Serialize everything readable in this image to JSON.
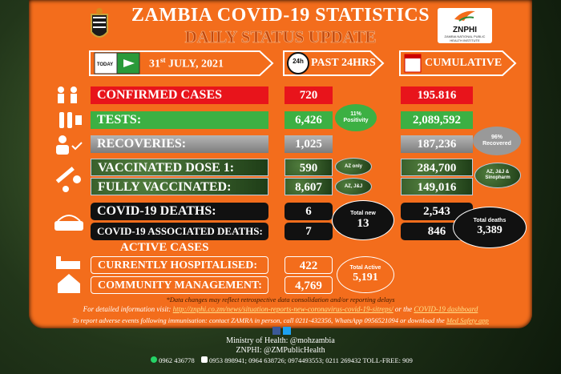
{
  "header": {
    "title": "ZAMBIA COVID-19 STATISTICS",
    "subtitle": "DAILY STATUS UPDATE",
    "logo": "ZNPHI",
    "logo_caption": "ZAMBIA NATIONAL PUBLIC HEALTH INSTITUTE"
  },
  "columns": {
    "today_icon": "TODAY",
    "date_day": "31",
    "date_suffix": "st",
    "date_rest": " JULY, 2021",
    "clock_icon": "24h",
    "past": "PAST 24HRS",
    "cumulative": "CUMULATIVE"
  },
  "rows": [
    {
      "label": "CONFIRMED CASES",
      "past_24hrs": "720",
      "cumulative": "195.816"
    },
    {
      "label": "TESTS:",
      "past_24hrs": "6,426",
      "cumulative": "2,089,592"
    },
    {
      "label": "RECOVERIES:",
      "past_24hrs": "1,025",
      "cumulative": "187,236"
    },
    {
      "label": "VACCINATED DOSE 1:",
      "past_24hrs": "590",
      "cumulative": "284,700"
    },
    {
      "label": "FULLY VACCINATED:",
      "past_24hrs": "8,607",
      "cumulative": "149,016"
    },
    {
      "label": "COVID-19 DEATHS:",
      "past_24hrs": "6",
      "cumulative": "2,543"
    },
    {
      "label": "COVID-19 ASSOCIATED DEATHS:",
      "past_24hrs": "7",
      "cumulative": "846"
    }
  ],
  "badges": {
    "positivity": {
      "value": "11%",
      "label": "Positivity"
    },
    "recovered": {
      "value": "96%",
      "label": "Recovered"
    },
    "dose1_vaccine": "AZ only",
    "full_vaccine": "AZ, J&J",
    "cumulative_vaccine": "AZ, J&J & Sinopharm",
    "total_new": {
      "label": "Total new",
      "value": "13"
    },
    "total_deaths": {
      "label": "Total deaths",
      "value": "3,389"
    }
  },
  "active": {
    "heading": "ACTIVE CASES",
    "rows": [
      {
        "label": "CURRENTLY HOSPITALISED:",
        "value": "422"
      },
      {
        "label": "COMMUNITY MANAGEMENT:",
        "value": "4,769"
      }
    ],
    "total": {
      "label": "Total Active",
      "value": "5,191"
    }
  },
  "footer": {
    "note": "*Data changes may reflect retrospective data consolidation and/or reporting delays",
    "info_prefix": "For detailed information visit: ",
    "info_url": "http://znphi.co.zm/news/situation-reports-new-coronavirus-covid-19-sitreps/",
    "info_mid": " or the ",
    "info_dashboard": "COVID-19 dashboard",
    "report_prefix": "To report adverse events following immunisation: contact ZAMRA in person, call 0211-432356, WhatsApp 0956521094 or download the ",
    "report_app": "Med Safety app",
    "ministry": "Ministry of Health: @mohzambia",
    "znphi": "ZNPHI: @ZMPublicHealth",
    "phone1": "0962 436778",
    "phone2": "0953 898941; 0964 638726; 0974493553; 0211 269432 TOLL-FREE: 909"
  }
}
